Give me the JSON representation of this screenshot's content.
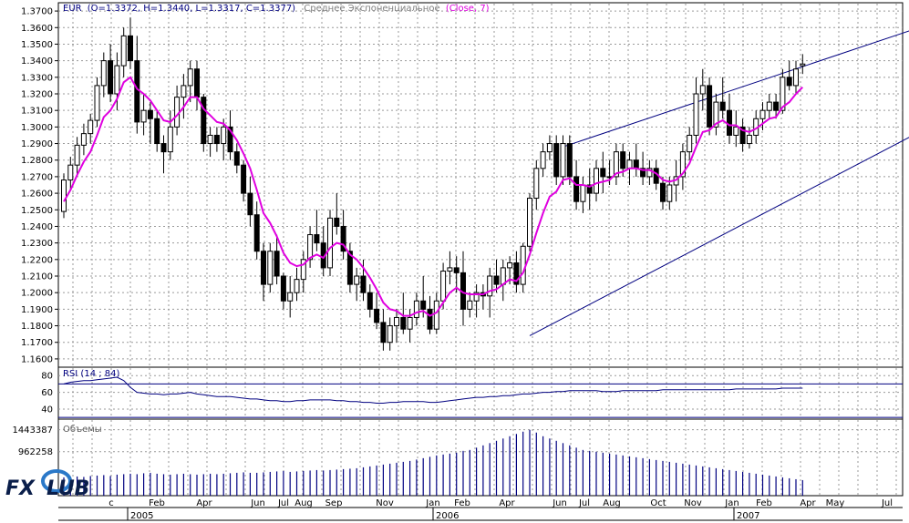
{
  "colors": {
    "background": "#ffffff",
    "grid": "#9a9a9a",
    "border": "#000000",
    "candle_up_fill": "#ffffff",
    "candle_down_fill": "#000000",
    "candle_outline": "#000000",
    "ema_line": "#e000e0",
    "channel_line": "#000080",
    "rsi_line": "#000080",
    "volume_bar": "#000080",
    "header_text": "#000080",
    "logo_dark": "#0a1e4a",
    "logo_blue": "#2a78c8"
  },
  "header": {
    "symbol": "EUR",
    "ohlc": "(O=1.3372, H=1.3440, L=1.3317, C=1.3377)",
    "indicator": "Среднее Экспоненциальное",
    "indicator_params": "(Close, 7)"
  },
  "rsi_panel": {
    "title": "RSI (14 ; 84)",
    "ticks": [
      "80",
      "60",
      "40"
    ]
  },
  "volume_panel": {
    "title": "Объемы",
    "ticks": [
      "1443387",
      "962258"
    ]
  },
  "logo": {
    "text": "FXCLUB",
    "icon": "fx-club-logo"
  },
  "x_axis": {
    "months": [
      "c",
      "Feb",
      "Apr",
      "Jun",
      "Jul",
      "Aug",
      "Sep",
      "Nov",
      "Jan",
      "Feb",
      "Apr",
      "Jun",
      "Jul",
      "Aug",
      "Oct",
      "Nov",
      "Jan",
      "Feb",
      "Apr",
      "May",
      "Jul"
    ],
    "years": [
      "2005",
      "2006",
      "2007"
    ]
  },
  "chart_data": [
    {
      "type": "candlestick",
      "title": "EUR",
      "timeframe": "weekly",
      "ylim": [
        1.155,
        1.375
      ],
      "y_ticks": [
        "1.3700",
        "1.3600",
        "1.3500",
        "1.3400",
        "1.3300",
        "1.3200",
        "1.3100",
        "1.3000",
        "1.2900",
        "1.2800",
        "1.2700",
        "1.2600",
        "1.2500",
        "1.2400",
        "1.2300",
        "1.2200",
        "1.2100",
        "1.2000",
        "1.1900",
        "1.1800",
        "1.1700",
        "1.1600"
      ],
      "last_bar": {
        "open": 1.3372,
        "high": 1.344,
        "low": 1.3317,
        "close": 1.3377
      },
      "series_name": "Среднее Экспоненциальное (Close, 7)",
      "ohlc": [
        [
          1.249,
          1.272,
          1.245,
          1.268
        ],
        [
          1.268,
          1.282,
          1.262,
          1.277
        ],
        [
          1.277,
          1.294,
          1.27,
          1.289
        ],
        [
          1.289,
          1.302,
          1.283,
          1.296
        ],
        [
          1.296,
          1.308,
          1.29,
          1.304
        ],
        [
          1.304,
          1.33,
          1.3,
          1.325
        ],
        [
          1.325,
          1.345,
          1.318,
          1.34
        ],
        [
          1.34,
          1.35,
          1.315,
          1.32
        ],
        [
          1.32,
          1.345,
          1.31,
          1.337
        ],
        [
          1.337,
          1.36,
          1.33,
          1.355
        ],
        [
          1.355,
          1.366,
          1.335,
          1.34
        ],
        [
          1.34,
          1.355,
          1.296,
          1.303
        ],
        [
          1.303,
          1.32,
          1.295,
          1.31
        ],
        [
          1.31,
          1.315,
          1.29,
          1.305
        ],
        [
          1.305,
          1.31,
          1.285,
          1.29
        ],
        [
          1.29,
          1.295,
          1.272,
          1.285
        ],
        [
          1.285,
          1.31,
          1.28,
          1.3
        ],
        [
          1.3,
          1.325,
          1.295,
          1.318
        ],
        [
          1.318,
          1.332,
          1.305,
          1.325
        ],
        [
          1.325,
          1.34,
          1.315,
          1.335
        ],
        [
          1.335,
          1.34,
          1.31,
          1.318
        ],
        [
          1.318,
          1.32,
          1.285,
          1.29
        ],
        [
          1.29,
          1.3,
          1.282,
          1.295
        ],
        [
          1.295,
          1.3,
          1.285,
          1.29
        ],
        [
          1.29,
          1.305,
          1.28,
          1.3
        ],
        [
          1.3,
          1.31,
          1.28,
          1.285
        ],
        [
          1.285,
          1.29,
          1.272,
          1.277
        ],
        [
          1.277,
          1.28,
          1.255,
          1.26
        ],
        [
          1.26,
          1.27,
          1.24,
          1.247
        ],
        [
          1.247,
          1.255,
          1.22,
          1.225
        ],
        [
          1.225,
          1.23,
          1.195,
          1.205
        ],
        [
          1.205,
          1.23,
          1.2,
          1.225
        ],
        [
          1.225,
          1.235,
          1.205,
          1.21
        ],
        [
          1.21,
          1.212,
          1.19,
          1.195
        ],
        [
          1.195,
          1.21,
          1.185,
          1.2
        ],
        [
          1.2,
          1.215,
          1.195,
          1.208
        ],
        [
          1.208,
          1.225,
          1.2,
          1.22
        ],
        [
          1.22,
          1.24,
          1.215,
          1.235
        ],
        [
          1.235,
          1.25,
          1.225,
          1.23
        ],
        [
          1.23,
          1.24,
          1.21,
          1.215
        ],
        [
          1.215,
          1.25,
          1.21,
          1.245
        ],
        [
          1.245,
          1.26,
          1.235,
          1.24
        ],
        [
          1.24,
          1.25,
          1.22,
          1.225
        ],
        [
          1.225,
          1.23,
          1.2,
          1.205
        ],
        [
          1.205,
          1.215,
          1.195,
          1.21
        ],
        [
          1.21,
          1.22,
          1.195,
          1.2
        ],
        [
          1.2,
          1.205,
          1.185,
          1.19
        ],
        [
          1.19,
          1.2,
          1.178,
          1.182
        ],
        [
          1.182,
          1.19,
          1.165,
          1.17
        ],
        [
          1.17,
          1.185,
          1.165,
          1.18
        ],
        [
          1.18,
          1.19,
          1.17,
          1.185
        ],
        [
          1.185,
          1.2,
          1.175,
          1.178
        ],
        [
          1.178,
          1.19,
          1.17,
          1.185
        ],
        [
          1.185,
          1.2,
          1.18,
          1.195
        ],
        [
          1.195,
          1.21,
          1.185,
          1.19
        ],
        [
          1.19,
          1.198,
          1.175,
          1.178
        ],
        [
          1.178,
          1.2,
          1.175,
          1.195
        ],
        [
          1.195,
          1.218,
          1.19,
          1.213
        ],
        [
          1.213,
          1.225,
          1.205,
          1.215
        ],
        [
          1.215,
          1.222,
          1.2,
          1.212
        ],
        [
          1.212,
          1.225,
          1.18,
          1.19
        ],
        [
          1.19,
          1.2,
          1.185,
          1.195
        ],
        [
          1.195,
          1.205,
          1.185,
          1.2
        ],
        [
          1.2,
          1.205,
          1.19,
          1.198
        ],
        [
          1.198,
          1.215,
          1.185,
          1.21
        ],
        [
          1.21,
          1.22,
          1.2,
          1.205
        ],
        [
          1.205,
          1.22,
          1.195,
          1.215
        ],
        [
          1.215,
          1.222,
          1.205,
          1.218
        ],
        [
          1.218,
          1.225,
          1.2,
          1.205
        ],
        [
          1.205,
          1.23,
          1.2,
          1.228
        ],
        [
          1.228,
          1.26,
          1.225,
          1.257
        ],
        [
          1.257,
          1.28,
          1.25,
          1.275
        ],
        [
          1.275,
          1.29,
          1.27,
          1.285
        ],
        [
          1.285,
          1.295,
          1.28,
          1.29
        ],
        [
          1.29,
          1.295,
          1.265,
          1.27
        ],
        [
          1.27,
          1.295,
          1.265,
          1.29
        ],
        [
          1.29,
          1.295,
          1.265,
          1.27
        ],
        [
          1.27,
          1.28,
          1.25,
          1.255
        ],
        [
          1.255,
          1.27,
          1.248,
          1.265
        ],
        [
          1.265,
          1.275,
          1.25,
          1.26
        ],
        [
          1.26,
          1.28,
          1.255,
          1.275
        ],
        [
          1.275,
          1.285,
          1.26,
          1.27
        ],
        [
          1.27,
          1.28,
          1.265,
          1.27
        ],
        [
          1.27,
          1.29,
          1.265,
          1.285
        ],
        [
          1.285,
          1.29,
          1.27,
          1.275
        ],
        [
          1.275,
          1.285,
          1.265,
          1.28
        ],
        [
          1.28,
          1.29,
          1.27,
          1.275
        ],
        [
          1.275,
          1.285,
          1.265,
          1.27
        ],
        [
          1.27,
          1.28,
          1.265,
          1.275
        ],
        [
          1.275,
          1.28,
          1.262,
          1.266
        ],
        [
          1.266,
          1.27,
          1.25,
          1.255
        ],
        [
          1.255,
          1.27,
          1.25,
          1.265
        ],
        [
          1.265,
          1.28,
          1.255,
          1.27
        ],
        [
          1.27,
          1.29,
          1.262,
          1.285
        ],
        [
          1.285,
          1.3,
          1.28,
          1.295
        ],
        [
          1.295,
          1.33,
          1.29,
          1.32
        ],
        [
          1.32,
          1.335,
          1.31,
          1.325
        ],
        [
          1.325,
          1.33,
          1.295,
          1.3
        ],
        [
          1.3,
          1.32,
          1.295,
          1.315
        ],
        [
          1.315,
          1.33,
          1.305,
          1.31
        ],
        [
          1.31,
          1.32,
          1.29,
          1.295
        ],
        [
          1.295,
          1.31,
          1.288,
          1.3
        ],
        [
          1.3,
          1.305,
          1.285,
          1.29
        ],
        [
          1.29,
          1.3,
          1.287,
          1.295
        ],
        [
          1.295,
          1.31,
          1.29,
          1.305
        ],
        [
          1.305,
          1.315,
          1.298,
          1.31
        ],
        [
          1.31,
          1.32,
          1.305,
          1.315
        ],
        [
          1.315,
          1.32,
          1.305,
          1.31
        ],
        [
          1.31,
          1.335,
          1.308,
          1.33
        ],
        [
          1.33,
          1.34,
          1.322,
          1.325
        ],
        [
          1.325,
          1.34,
          1.32,
          1.335
        ],
        [
          1.337,
          1.344,
          1.332,
          1.338
        ]
      ],
      "ema": [
        1.255,
        1.262,
        1.271,
        1.279,
        1.285,
        1.295,
        1.306,
        1.31,
        1.317,
        1.327,
        1.33,
        1.323,
        1.32,
        1.316,
        1.31,
        1.304,
        1.303,
        1.307,
        1.312,
        1.318,
        1.318,
        1.311,
        1.307,
        1.303,
        1.302,
        1.298,
        1.292,
        1.284,
        1.275,
        1.262,
        1.248,
        1.242,
        1.234,
        1.224,
        1.218,
        1.216,
        1.217,
        1.221,
        1.223,
        1.221,
        1.227,
        1.23,
        1.229,
        1.223,
        1.22,
        1.215,
        1.209,
        1.202,
        1.194,
        1.19,
        1.189,
        1.186,
        1.186,
        1.188,
        1.189,
        1.186,
        1.188,
        1.194,
        1.2,
        1.203,
        1.2,
        1.199,
        1.199,
        1.199,
        1.201,
        1.202,
        1.205,
        1.208,
        1.207,
        1.212,
        1.223,
        1.236,
        1.248,
        1.258,
        1.261,
        1.268,
        1.269,
        1.265,
        1.265,
        1.264,
        1.266,
        1.267,
        1.268,
        1.272,
        1.273,
        1.275,
        1.275,
        1.274,
        1.274,
        1.272,
        1.268,
        1.267,
        1.268,
        1.272,
        1.278,
        1.288,
        1.297,
        1.298,
        1.302,
        1.304,
        1.301,
        1.301,
        1.298,
        1.297,
        1.299,
        1.302,
        1.305,
        1.306,
        1.312,
        1.315,
        1.32,
        1.324
      ],
      "channel_upper": {
        "start": {
          "bar": 75,
          "value": 1.288
        },
        "end": {
          "bar": 130,
          "value": 1.362
        }
      },
      "channel_lower": {
        "start": {
          "bar": 70,
          "value": 1.174
        },
        "end": {
          "bar": 140,
          "value": 1.321
        }
      }
    },
    {
      "type": "line",
      "title": "RSI (14 ; 84)",
      "ylim": [
        28,
        90
      ],
      "levels": [
        70,
        30
      ],
      "values": [
        70,
        72,
        73,
        74,
        74,
        75,
        76,
        77,
        78,
        74,
        66,
        60,
        59,
        58,
        58,
        57,
        58,
        58,
        59,
        60,
        58,
        57,
        56,
        55,
        55,
        55,
        54,
        53,
        52,
        52,
        51,
        50,
        50,
        49,
        49,
        50,
        50,
        51,
        51,
        51,
        51,
        50,
        50,
        49,
        49,
        48,
        48,
        47,
        47,
        48,
        48,
        49,
        49,
        49,
        49,
        48,
        48,
        49,
        50,
        51,
        52,
        53,
        54,
        54,
        55,
        55,
        56,
        56,
        57,
        58,
        58,
        59,
        60,
        60,
        61,
        61,
        62,
        62,
        62,
        62,
        62,
        61,
        61,
        61,
        62,
        62,
        62,
        62,
        62,
        62,
        63,
        63,
        63,
        63,
        63,
        63,
        63,
        63,
        63,
        63,
        63,
        64,
        64,
        64,
        64,
        64,
        64,
        64,
        65,
        65,
        65,
        65
      ]
    },
    {
      "type": "bar",
      "title": "Объемы",
      "y_ticks": [
        1443387,
        962258
      ],
      "values": [
        400000,
        400000,
        420000,
        410000,
        430000,
        440000,
        450000,
        430000,
        460000,
        470000,
        480000,
        470000,
        490000,
        500000,
        480000,
        470000,
        460000,
        470000,
        480000,
        470000,
        460000,
        470000,
        480000,
        470000,
        480000,
        490000,
        500000,
        510000,
        500000,
        500000,
        510000,
        520000,
        530000,
        540000,
        520000,
        530000,
        540000,
        550000,
        560000,
        550000,
        560000,
        570000,
        580000,
        590000,
        600000,
        620000,
        640000,
        660000,
        680000,
        700000,
        720000,
        740000,
        760000,
        790000,
        820000,
        850000,
        880000,
        900000,
        920000,
        940000,
        980000,
        1000000,
        1050000,
        1100000,
        1150000,
        1200000,
        1250000,
        1300000,
        1350000,
        1400000,
        1440000,
        1380000,
        1300000,
        1250000,
        1200000,
        1150000,
        1100000,
        1050000,
        1000000,
        980000,
        960000,
        940000,
        920000,
        900000,
        880000,
        860000,
        840000,
        820000,
        800000,
        780000,
        760000,
        740000,
        720000,
        700000,
        680000,
        660000,
        640000,
        620000,
        600000,
        580000,
        560000,
        540000,
        520000,
        500000,
        480000,
        460000,
        440000,
        420000,
        400000,
        380000,
        360000,
        340000
      ]
    }
  ]
}
